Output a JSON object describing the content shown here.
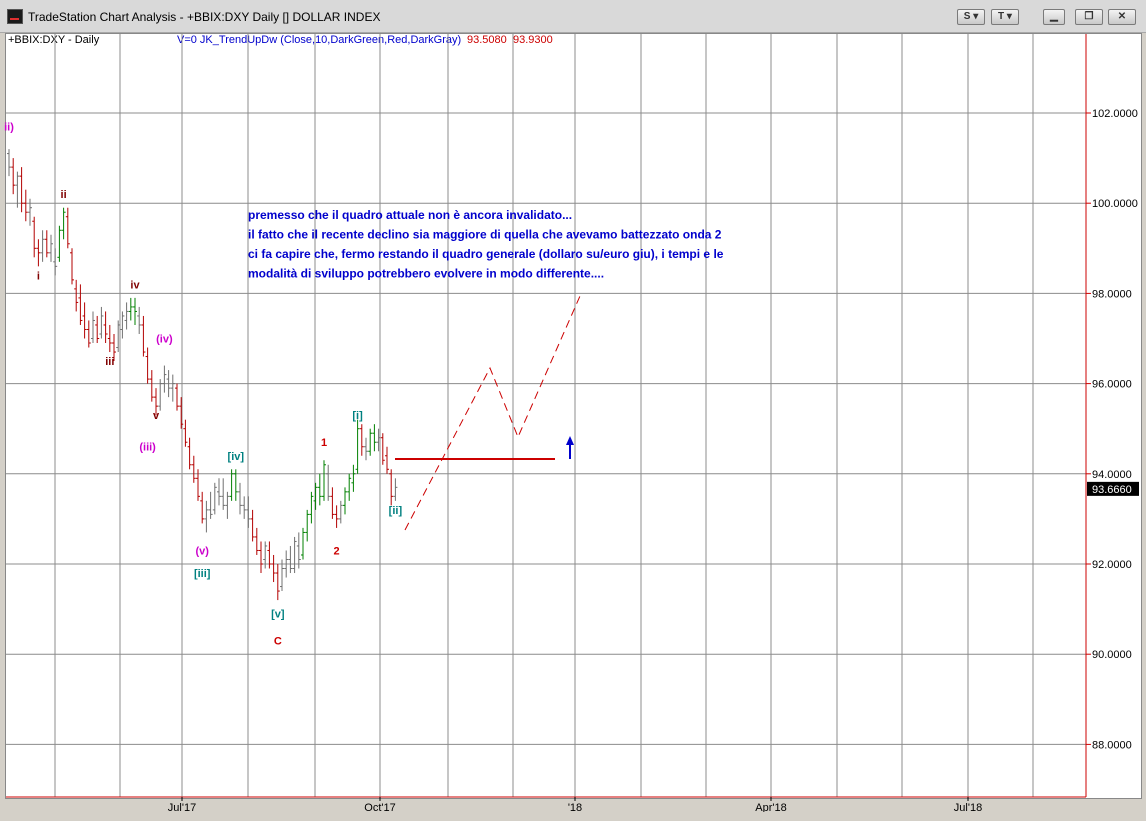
{
  "window": {
    "title": "TradeStation Chart Analysis - +BBIX:DXY Daily [] DOLLAR INDEX",
    "s_button": "S",
    "t_button": "T",
    "colors": {
      "titlebar": "#d9d9d9"
    }
  },
  "header": {
    "symbol": "+BBIX:DXY - Daily",
    "indicator": "V=0  JK_TrendUpDw  (Close,10,DarkGreen,Red,DarkGray)",
    "value1": "93.5080",
    "value2": "93.9300"
  },
  "chart_data": {
    "type": "bar",
    "x": [
      "Jul'17",
      "Oct'17",
      "'18",
      "Apr'18",
      "Jul'18"
    ],
    "y_ticks": [
      "102.0000",
      "100.0000",
      "98.0000",
      "96.0000",
      "94.0000",
      "92.0000",
      "90.0000",
      "88.0000"
    ],
    "ylim": [
      86.8,
      104.3
    ],
    "last_price": "93.6660",
    "grid": true,
    "annotation": {
      "lines": [
        "premesso che il quadro attuale non è ancora invalidato...",
        "il fatto che il recente declino sia maggiore di quella che avevamo battezzato onda 2",
        "ci fa capire che, fermo restando il quadro generale (dollaro su/euro giu), i tempi e le",
        "modalità di sviluppo potrebbero evolvere in modo differente...."
      ],
      "color": "#0000cc"
    },
    "wave_labels": [
      {
        "text": "ii)",
        "idx": 0,
        "price": 101.7,
        "color": "#cc00cc"
      },
      {
        "text": "ii",
        "idx": 13,
        "price": 100.2,
        "color": "#800000"
      },
      {
        "text": "i",
        "idx": 7,
        "price": 98.4,
        "color": "#800000"
      },
      {
        "text": "iv",
        "idx": 30,
        "price": 98.2,
        "color": "#800000"
      },
      {
        "text": "iii",
        "idx": 24,
        "price": 96.5,
        "color": "#800000"
      },
      {
        "text": "(iv)",
        "idx": 37,
        "price": 97.0,
        "color": "#cc00cc"
      },
      {
        "text": "v",
        "idx": 35,
        "price": 95.3,
        "color": "#800000"
      },
      {
        "text": "(iii)",
        "idx": 33,
        "price": 94.6,
        "color": "#cc00cc"
      },
      {
        "text": "[iv]",
        "idx": 54,
        "price": 94.4,
        "color": "#008080"
      },
      {
        "text": "(v)",
        "idx": 46,
        "price": 92.3,
        "color": "#cc00cc"
      },
      {
        "text": "[iii]",
        "idx": 46,
        "price": 91.8,
        "color": "#008080"
      },
      {
        "text": "[v]",
        "idx": 64,
        "price": 90.9,
        "color": "#008080"
      },
      {
        "text": "C",
        "idx": 64,
        "price": 90.3,
        "color": "#cc0000"
      },
      {
        "text": "1",
        "idx": 75,
        "price": 94.7,
        "color": "#cc0000"
      },
      {
        "text": "2",
        "idx": 78,
        "price": 92.3,
        "color": "#cc0000"
      },
      {
        "text": "[i]",
        "idx": 83,
        "price": 95.3,
        "color": "#008080"
      },
      {
        "text": "[ii]",
        "idx": 92,
        "price": 93.2,
        "color": "#008080"
      }
    ],
    "bars": [
      {
        "o": 101.1,
        "h": 101.2,
        "l": 100.6,
        "c": 100.8,
        "col": "gray"
      },
      {
        "o": 100.8,
        "h": 101.0,
        "l": 100.2,
        "c": 100.4,
        "col": "red"
      },
      {
        "o": 100.4,
        "h": 100.7,
        "l": 99.9,
        "c": 100.6,
        "col": "gray"
      },
      {
        "o": 100.6,
        "h": 100.8,
        "l": 99.8,
        "c": 100.0,
        "col": "red"
      },
      {
        "o": 100.0,
        "h": 100.3,
        "l": 99.6,
        "c": 99.8,
        "col": "red"
      },
      {
        "o": 99.8,
        "h": 100.1,
        "l": 99.5,
        "c": 99.9,
        "col": "gray"
      },
      {
        "o": 99.6,
        "h": 99.7,
        "l": 98.8,
        "c": 99.0,
        "col": "red"
      },
      {
        "o": 99.0,
        "h": 99.2,
        "l": 98.6,
        "c": 98.9,
        "col": "red"
      },
      {
        "o": 98.9,
        "h": 99.4,
        "l": 98.7,
        "c": 99.2,
        "col": "gray"
      },
      {
        "o": 99.2,
        "h": 99.4,
        "l": 98.8,
        "c": 98.9,
        "col": "red"
      },
      {
        "o": 98.9,
        "h": 99.3,
        "l": 98.7,
        "c": 99.1,
        "col": "gray"
      },
      {
        "o": 98.7,
        "h": 99.0,
        "l": 98.4,
        "c": 98.6,
        "col": "gray"
      },
      {
        "o": 98.8,
        "h": 99.5,
        "l": 98.7,
        "c": 99.4,
        "col": "green"
      },
      {
        "o": 99.4,
        "h": 99.9,
        "l": 99.2,
        "c": 99.8,
        "col": "green"
      },
      {
        "o": 99.7,
        "h": 99.9,
        "l": 99.0,
        "c": 99.1,
        "col": "red"
      },
      {
        "o": 98.9,
        "h": 99.0,
        "l": 98.2,
        "c": 98.3,
        "col": "red"
      },
      {
        "o": 98.1,
        "h": 98.3,
        "l": 97.6,
        "c": 97.8,
        "col": "red"
      },
      {
        "o": 97.9,
        "h": 98.2,
        "l": 97.3,
        "c": 97.4,
        "col": "red"
      },
      {
        "o": 97.5,
        "h": 97.8,
        "l": 97.0,
        "c": 97.2,
        "col": "red"
      },
      {
        "o": 97.2,
        "h": 97.4,
        "l": 96.8,
        "c": 96.9,
        "col": "red"
      },
      {
        "o": 97.0,
        "h": 97.6,
        "l": 96.9,
        "c": 97.4,
        "col": "gray"
      },
      {
        "o": 97.3,
        "h": 97.5,
        "l": 96.9,
        "c": 97.0,
        "col": "red"
      },
      {
        "o": 97.1,
        "h": 97.7,
        "l": 97.0,
        "c": 97.5,
        "col": "gray"
      },
      {
        "o": 97.3,
        "h": 97.6,
        "l": 96.9,
        "c": 97.1,
        "col": "red"
      },
      {
        "o": 97.0,
        "h": 97.3,
        "l": 96.7,
        "c": 96.9,
        "col": "red"
      },
      {
        "o": 96.9,
        "h": 97.1,
        "l": 96.5,
        "c": 96.7,
        "col": "red"
      },
      {
        "o": 96.8,
        "h": 97.4,
        "l": 96.7,
        "c": 97.3,
        "col": "gray"
      },
      {
        "o": 97.2,
        "h": 97.6,
        "l": 97.0,
        "c": 97.5,
        "col": "gray"
      },
      {
        "o": 97.4,
        "h": 97.8,
        "l": 97.2,
        "c": 97.6,
        "col": "gray"
      },
      {
        "o": 97.6,
        "h": 97.9,
        "l": 97.4,
        "c": 97.7,
        "col": "green"
      },
      {
        "o": 97.7,
        "h": 97.9,
        "l": 97.3,
        "c": 97.6,
        "col": "green"
      },
      {
        "o": 97.5,
        "h": 97.7,
        "l": 97.1,
        "c": 97.3,
        "col": "gray"
      },
      {
        "o": 97.3,
        "h": 97.5,
        "l": 96.6,
        "c": 96.7,
        "col": "red"
      },
      {
        "o": 96.6,
        "h": 96.8,
        "l": 96.0,
        "c": 96.1,
        "col": "red"
      },
      {
        "o": 96.1,
        "h": 96.3,
        "l": 95.6,
        "c": 95.7,
        "col": "red"
      },
      {
        "o": 95.7,
        "h": 95.9,
        "l": 95.3,
        "c": 95.5,
        "col": "red"
      },
      {
        "o": 95.5,
        "h": 96.1,
        "l": 95.4,
        "c": 96.0,
        "col": "gray"
      },
      {
        "o": 96.0,
        "h": 96.4,
        "l": 95.8,
        "c": 96.2,
        "col": "gray"
      },
      {
        "o": 96.1,
        "h": 96.3,
        "l": 95.7,
        "c": 95.9,
        "col": "gray"
      },
      {
        "o": 95.9,
        "h": 96.2,
        "l": 95.6,
        "c": 96.0,
        "col": "gray"
      },
      {
        "o": 95.9,
        "h": 96.0,
        "l": 95.4,
        "c": 95.5,
        "col": "red"
      },
      {
        "o": 95.5,
        "h": 95.7,
        "l": 95.0,
        "c": 95.1,
        "col": "red"
      },
      {
        "o": 95.0,
        "h": 95.2,
        "l": 94.6,
        "c": 94.7,
        "col": "red"
      },
      {
        "o": 94.6,
        "h": 94.8,
        "l": 94.1,
        "c": 94.2,
        "col": "red"
      },
      {
        "o": 94.2,
        "h": 94.4,
        "l": 93.8,
        "c": 93.9,
        "col": "red"
      },
      {
        "o": 93.9,
        "h": 94.1,
        "l": 93.4,
        "c": 93.5,
        "col": "red"
      },
      {
        "o": 93.4,
        "h": 93.6,
        "l": 92.9,
        "c": 93.0,
        "col": "red"
      },
      {
        "o": 93.0,
        "h": 93.4,
        "l": 92.7,
        "c": 93.2,
        "col": "gray"
      },
      {
        "o": 93.2,
        "h": 93.6,
        "l": 93.0,
        "c": 93.1,
        "col": "gray"
      },
      {
        "o": 93.2,
        "h": 93.8,
        "l": 93.1,
        "c": 93.7,
        "col": "gray"
      },
      {
        "o": 93.6,
        "h": 93.9,
        "l": 93.3,
        "c": 93.5,
        "col": "gray"
      },
      {
        "o": 93.5,
        "h": 93.9,
        "l": 93.2,
        "c": 93.3,
        "col": "gray"
      },
      {
        "o": 93.3,
        "h": 93.6,
        "l": 93.0,
        "c": 93.5,
        "col": "gray"
      },
      {
        "o": 93.5,
        "h": 94.1,
        "l": 93.4,
        "c": 94.0,
        "col": "green"
      },
      {
        "o": 94.0,
        "h": 94.1,
        "l": 93.4,
        "c": 93.6,
        "col": "green"
      },
      {
        "o": 93.6,
        "h": 93.8,
        "l": 93.1,
        "c": 93.3,
        "col": "gray"
      },
      {
        "o": 93.3,
        "h": 93.5,
        "l": 93.0,
        "c": 93.2,
        "col": "gray"
      },
      {
        "o": 93.2,
        "h": 93.5,
        "l": 92.8,
        "c": 93.0,
        "col": "gray"
      },
      {
        "o": 93.0,
        "h": 93.2,
        "l": 92.5,
        "c": 92.6,
        "col": "red"
      },
      {
        "o": 92.6,
        "h": 92.8,
        "l": 92.2,
        "c": 92.3,
        "col": "red"
      },
      {
        "o": 92.3,
        "h": 92.5,
        "l": 91.8,
        "c": 92.0,
        "col": "red"
      },
      {
        "o": 92.1,
        "h": 92.5,
        "l": 91.9,
        "c": 92.4,
        "col": "gray"
      },
      {
        "o": 92.3,
        "h": 92.5,
        "l": 91.9,
        "c": 92.0,
        "col": "red"
      },
      {
        "o": 92.0,
        "h": 92.2,
        "l": 91.6,
        "c": 91.8,
        "col": "red"
      },
      {
        "o": 91.8,
        "h": 92.0,
        "l": 91.2,
        "c": 91.4,
        "col": "red"
      },
      {
        "o": 91.5,
        "h": 92.1,
        "l": 91.4,
        "c": 91.9,
        "col": "gray"
      },
      {
        "o": 91.9,
        "h": 92.3,
        "l": 91.7,
        "c": 92.1,
        "col": "gray"
      },
      {
        "o": 92.1,
        "h": 92.4,
        "l": 91.8,
        "c": 91.9,
        "col": "gray"
      },
      {
        "o": 91.9,
        "h": 92.6,
        "l": 91.8,
        "c": 92.5,
        "col": "gray"
      },
      {
        "o": 92.4,
        "h": 92.7,
        "l": 91.9,
        "c": 92.1,
        "col": "gray"
      },
      {
        "o": 92.2,
        "h": 92.8,
        "l": 92.1,
        "c": 92.7,
        "col": "green"
      },
      {
        "o": 92.7,
        "h": 93.2,
        "l": 92.5,
        "c": 93.1,
        "col": "green"
      },
      {
        "o": 93.1,
        "h": 93.6,
        "l": 92.9,
        "c": 93.5,
        "col": "green"
      },
      {
        "o": 93.4,
        "h": 93.8,
        "l": 93.2,
        "c": 93.7,
        "col": "green"
      },
      {
        "o": 93.7,
        "h": 94.0,
        "l": 93.3,
        "c": 93.5,
        "col": "green"
      },
      {
        "o": 93.5,
        "h": 94.3,
        "l": 93.4,
        "c": 94.2,
        "col": "green"
      },
      {
        "o": 94.0,
        "h": 94.2,
        "l": 93.4,
        "c": 93.5,
        "col": "gray"
      },
      {
        "o": 93.5,
        "h": 93.7,
        "l": 93.0,
        "c": 93.1,
        "col": "red"
      },
      {
        "o": 93.1,
        "h": 93.3,
        "l": 92.8,
        "c": 93.0,
        "col": "red"
      },
      {
        "o": 93.0,
        "h": 93.4,
        "l": 92.9,
        "c": 93.3,
        "col": "gray"
      },
      {
        "o": 93.3,
        "h": 93.7,
        "l": 93.1,
        "c": 93.6,
        "col": "green"
      },
      {
        "o": 93.6,
        "h": 94.0,
        "l": 93.4,
        "c": 93.9,
        "col": "green"
      },
      {
        "o": 93.8,
        "h": 94.2,
        "l": 93.6,
        "c": 94.0,
        "col": "green"
      },
      {
        "o": 94.1,
        "h": 95.2,
        "l": 94.0,
        "c": 95.0,
        "col": "green"
      },
      {
        "o": 95.0,
        "h": 95.1,
        "l": 94.4,
        "c": 94.6,
        "col": "red"
      },
      {
        "o": 94.6,
        "h": 94.8,
        "l": 94.3,
        "c": 94.5,
        "col": "gray"
      },
      {
        "o": 94.5,
        "h": 95.0,
        "l": 94.4,
        "c": 94.9,
        "col": "green"
      },
      {
        "o": 94.9,
        "h": 95.1,
        "l": 94.5,
        "c": 94.7,
        "col": "green"
      },
      {
        "o": 94.7,
        "h": 95.0,
        "l": 94.5,
        "c": 94.8,
        "col": "gray"
      },
      {
        "o": 94.8,
        "h": 94.9,
        "l": 94.2,
        "c": 94.3,
        "col": "red"
      },
      {
        "o": 94.4,
        "h": 94.6,
        "l": 94.0,
        "c": 94.1,
        "col": "red"
      },
      {
        "o": 94.0,
        "h": 94.1,
        "l": 93.3,
        "c": 93.5,
        "col": "red"
      },
      {
        "o": 93.5,
        "h": 93.9,
        "l": 93.4,
        "c": 93.7,
        "col": "gray"
      }
    ]
  }
}
